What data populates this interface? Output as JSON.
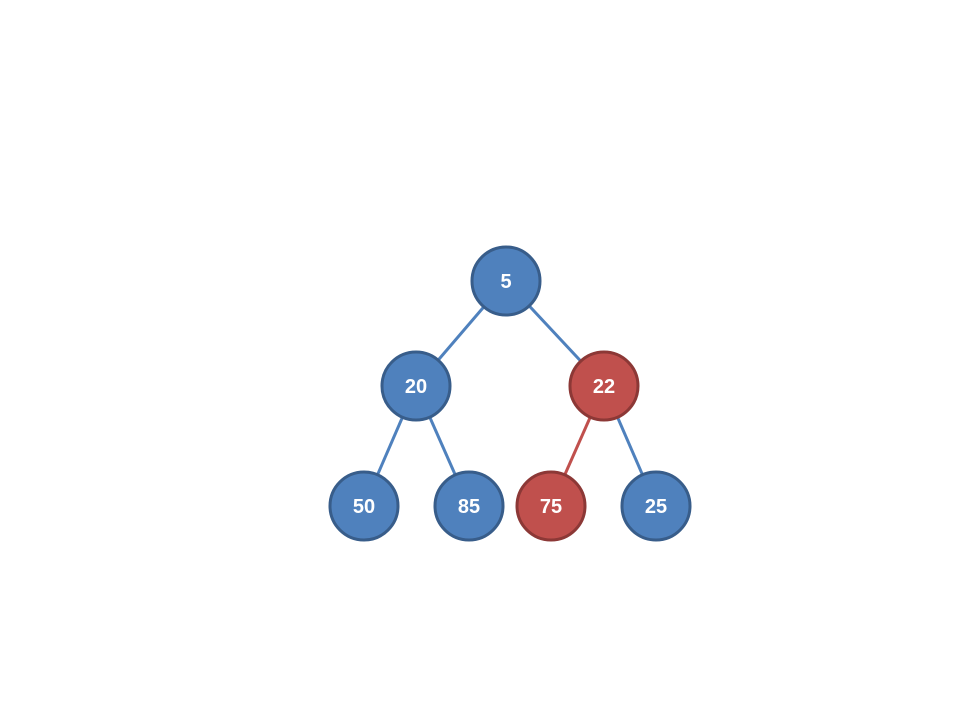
{
  "tree": {
    "colors": {
      "normal_fill": "#4f81bd",
      "normal_stroke": "#385d8a",
      "highlight_fill": "#c0504d",
      "highlight_stroke": "#8c3836",
      "normal_edge": "#4f81bd",
      "highlight_edge": "#c0504d"
    },
    "nodes": [
      {
        "id": "n5",
        "label": "5",
        "highlighted": false
      },
      {
        "id": "n20",
        "label": "20",
        "highlighted": false
      },
      {
        "id": "n22",
        "label": "22",
        "highlighted": true
      },
      {
        "id": "n50",
        "label": "50",
        "highlighted": false
      },
      {
        "id": "n85",
        "label": "85",
        "highlighted": false
      },
      {
        "id": "n75",
        "label": "75",
        "highlighted": true
      },
      {
        "id": "n25",
        "label": "25",
        "highlighted": false
      }
    ],
    "edges": [
      {
        "from": "n5",
        "to": "n20",
        "highlighted": false
      },
      {
        "from": "n5",
        "to": "n22",
        "highlighted": false
      },
      {
        "from": "n20",
        "to": "n50",
        "highlighted": false
      },
      {
        "from": "n20",
        "to": "n85",
        "highlighted": false
      },
      {
        "from": "n22",
        "to": "n75",
        "highlighted": true
      },
      {
        "from": "n22",
        "to": "n25",
        "highlighted": false
      }
    ]
  }
}
